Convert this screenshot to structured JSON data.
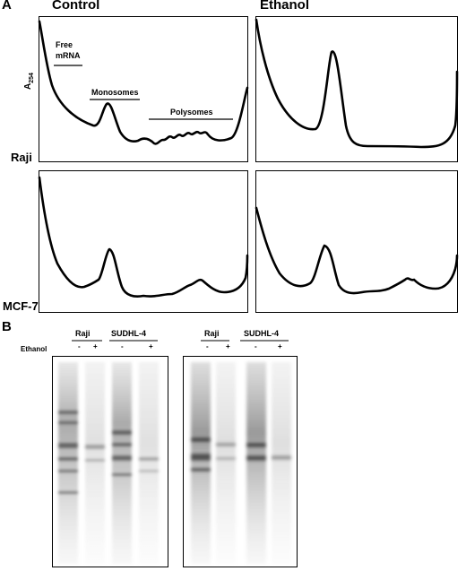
{
  "panel_a": {
    "letter": "A",
    "columns": [
      "Control",
      "Ethanol"
    ],
    "rows": [
      "Raji",
      "MCF-7"
    ],
    "y_axis_label_main": "A",
    "y_axis_label_sub": "254",
    "annotations": {
      "free_mrna_line1": "Free",
      "free_mrna_line2": "mRNA",
      "monosomes": "Monosomes",
      "polysomes": "Polysomes"
    }
  },
  "panel_b": {
    "letter": "B",
    "treatment_label": "Ethanol",
    "gels": [
      {
        "cell_lines": [
          "Raji",
          "SUDHL-4"
        ],
        "lanes": [
          "-",
          "+",
          "-",
          "+"
        ]
      },
      {
        "cell_lines": [
          "Raji",
          "SUDHL-4"
        ],
        "lanes": [
          "-",
          "+",
          "-",
          "+"
        ]
      }
    ]
  }
}
